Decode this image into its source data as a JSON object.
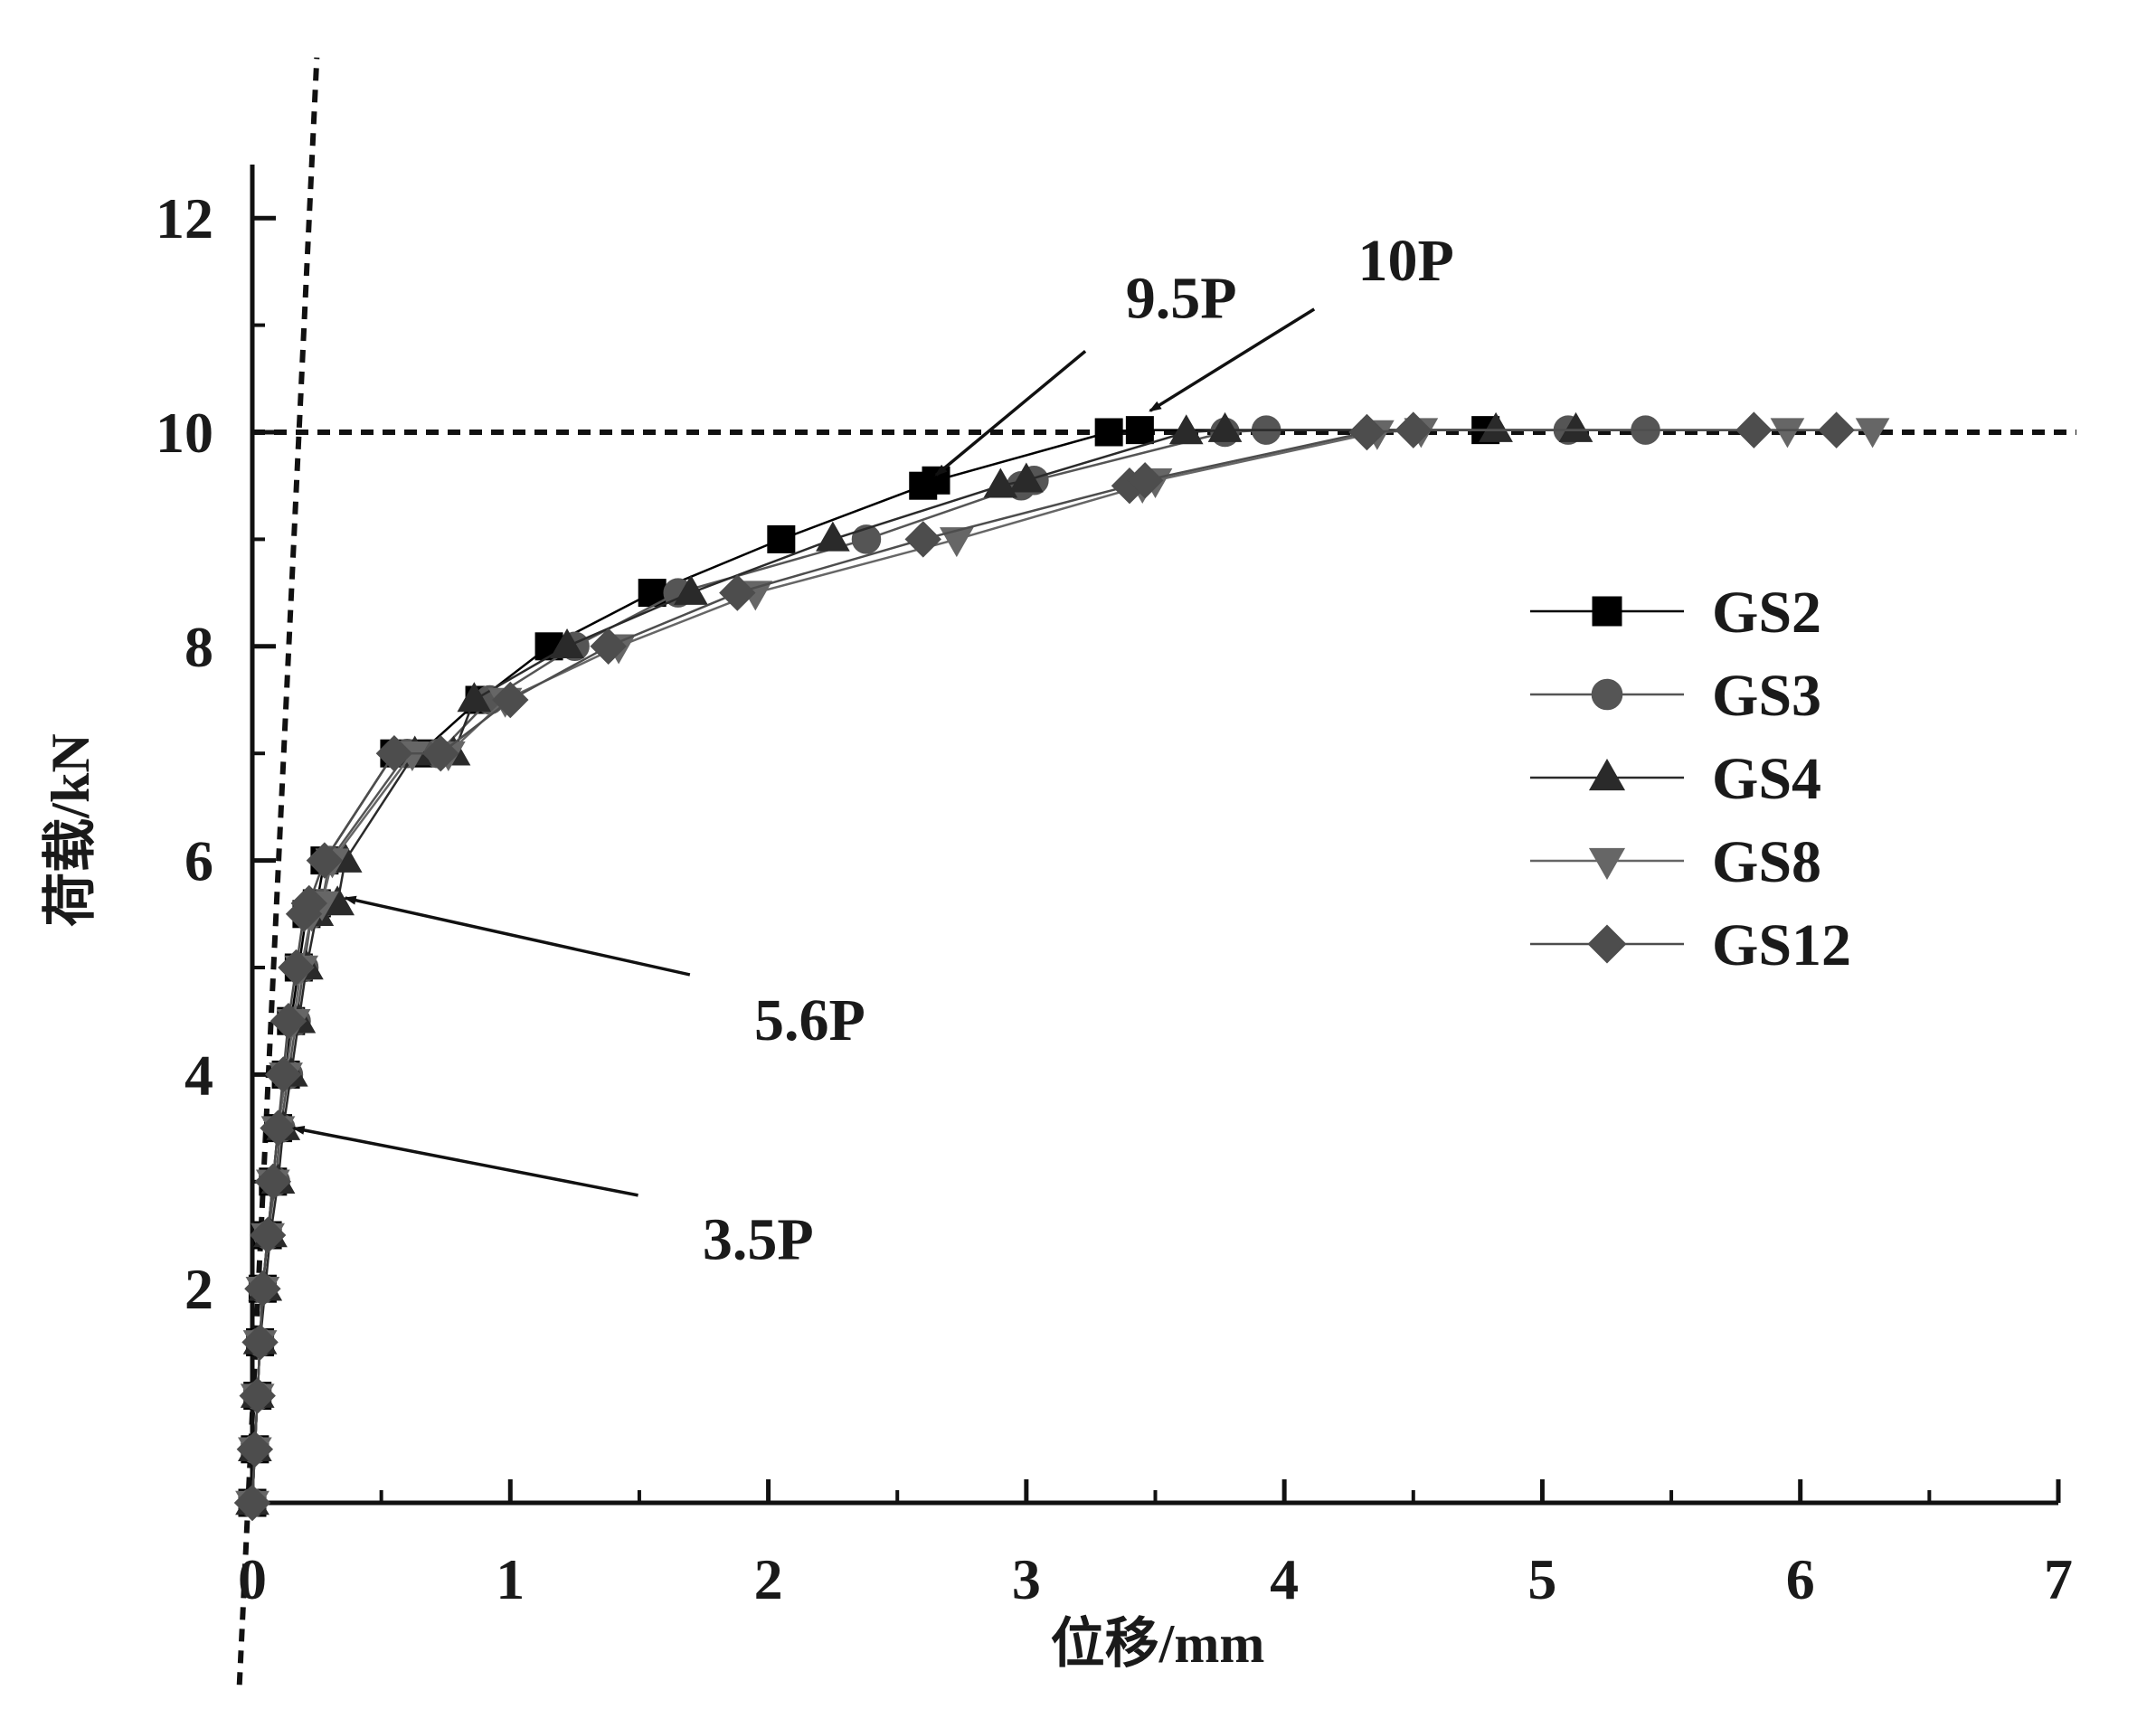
{
  "chart_data": {
    "type": "line",
    "title": "",
    "xlabel": "位移/mm",
    "ylabel": "荷载/kN",
    "xlim": [
      0,
      7
    ],
    "ylim": [
      0,
      12.5
    ],
    "xticks": [
      "0",
      "1",
      "2",
      "3",
      "4",
      "5",
      "6",
      "7"
    ],
    "yticks": [
      "2",
      "4",
      "6",
      "8",
      "10",
      "12"
    ],
    "legend_position": "right",
    "grid": false,
    "series": [
      {
        "name": "GS2",
        "marker": "square",
        "color": "#000000",
        "x": [
          0.0,
          0.01,
          0.02,
          0.03,
          0.04,
          0.06,
          0.08,
          0.1,
          0.13,
          0.15,
          0.18,
          0.21,
          0.25,
          0.28,
          0.55,
          0.65,
          0.88,
          1.15,
          1.55,
          2.05,
          2.6,
          2.65,
          3.32,
          3.44,
          4.78
        ],
        "y": [
          0.0,
          0.5,
          1.0,
          1.5,
          2.0,
          2.5,
          3.0,
          3.5,
          4.0,
          4.5,
          5.0,
          5.5,
          5.6,
          6.0,
          7.0,
          7.0,
          7.5,
          8.0,
          8.5,
          9.0,
          9.5,
          9.55,
          10.0,
          10.02,
          10.02
        ]
      },
      {
        "name": "GS3",
        "marker": "circle",
        "color": "#555555",
        "x": [
          0.0,
          0.01,
          0.02,
          0.03,
          0.04,
          0.06,
          0.09,
          0.11,
          0.14,
          0.17,
          0.2,
          0.23,
          0.27,
          0.3,
          0.6,
          0.72,
          0.92,
          1.25,
          1.65,
          2.38,
          2.98,
          3.03,
          3.77,
          3.93,
          5.1,
          5.4
        ],
        "y": [
          0.0,
          0.5,
          1.0,
          1.5,
          2.0,
          2.5,
          3.0,
          3.5,
          4.0,
          4.5,
          5.0,
          5.5,
          5.6,
          6.0,
          7.0,
          7.0,
          7.5,
          8.0,
          8.5,
          9.0,
          9.5,
          9.55,
          10.0,
          10.02,
          10.02,
          10.02
        ]
      },
      {
        "name": "GS4",
        "marker": "triangle-up",
        "color": "#2a2a2a",
        "x": [
          0.0,
          0.01,
          0.02,
          0.03,
          0.05,
          0.07,
          0.1,
          0.12,
          0.15,
          0.18,
          0.21,
          0.25,
          0.33,
          0.36,
          0.63,
          0.78,
          0.86,
          1.22,
          1.7,
          2.25,
          2.9,
          3.0,
          3.62,
          3.77,
          4.82,
          5.13
        ],
        "y": [
          0.0,
          0.5,
          1.0,
          1.5,
          2.0,
          2.5,
          3.0,
          3.5,
          4.0,
          4.5,
          5.0,
          5.5,
          5.6,
          6.0,
          7.0,
          7.0,
          7.5,
          8.0,
          8.5,
          9.0,
          9.5,
          9.55,
          10.0,
          10.02,
          10.02,
          10.02
        ]
      },
      {
        "name": "GS8",
        "marker": "triangle-down",
        "color": "#666666",
        "x": [
          0.0,
          0.01,
          0.02,
          0.03,
          0.04,
          0.06,
          0.08,
          0.1,
          0.13,
          0.16,
          0.19,
          0.23,
          0.27,
          0.31,
          0.62,
          0.76,
          0.98,
          1.42,
          1.95,
          2.73,
          3.45,
          3.5,
          4.36,
          4.53,
          5.95,
          6.28
        ],
        "y": [
          0.0,
          0.5,
          1.0,
          1.5,
          2.0,
          2.5,
          3.0,
          3.5,
          4.0,
          4.5,
          5.0,
          5.5,
          5.6,
          6.0,
          7.0,
          7.0,
          7.5,
          8.0,
          8.5,
          9.0,
          9.5,
          9.55,
          10.0,
          10.02,
          10.02,
          10.02
        ]
      },
      {
        "name": "GS12",
        "marker": "diamond",
        "color": "#4d4d4d",
        "x": [
          0.0,
          0.01,
          0.02,
          0.03,
          0.04,
          0.06,
          0.08,
          0.1,
          0.12,
          0.14,
          0.17,
          0.2,
          0.22,
          0.28,
          0.55,
          0.73,
          1.0,
          1.38,
          1.88,
          2.6,
          3.4,
          3.46,
          4.32,
          4.5,
          5.82,
          6.14
        ],
        "y": [
          0.0,
          0.5,
          1.0,
          1.5,
          2.0,
          2.5,
          3.0,
          3.5,
          4.0,
          4.5,
          5.0,
          5.5,
          5.6,
          6.0,
          7.0,
          7.0,
          7.5,
          8.0,
          8.5,
          9.0,
          9.5,
          9.55,
          10.0,
          10.02,
          10.02,
          10.02
        ]
      }
    ],
    "reference_lines": [
      {
        "kind": "horizontal",
        "y": 10.0,
        "style": "dashed"
      },
      {
        "kind": "line",
        "x1": -0.05,
        "y1": -1.7,
        "x2": 0.25,
        "y2": 13.5,
        "style": "dashed"
      }
    ],
    "annotations": [
      {
        "text": "9.5P",
        "target": [
          2.65,
          9.6
        ],
        "label_at": [
          3.35,
          11.0
        ]
      },
      {
        "text": "10P",
        "target": [
          3.48,
          10.2
        ],
        "label_at": [
          4.25,
          11.35
        ]
      },
      {
        "text": "5.6P",
        "target": [
          0.36,
          5.65
        ],
        "label_at": [
          1.85,
          4.85
        ]
      },
      {
        "text": "3.5P",
        "target": [
          0.16,
          3.5
        ],
        "label_at": [
          1.65,
          2.8
        ]
      }
    ]
  }
}
